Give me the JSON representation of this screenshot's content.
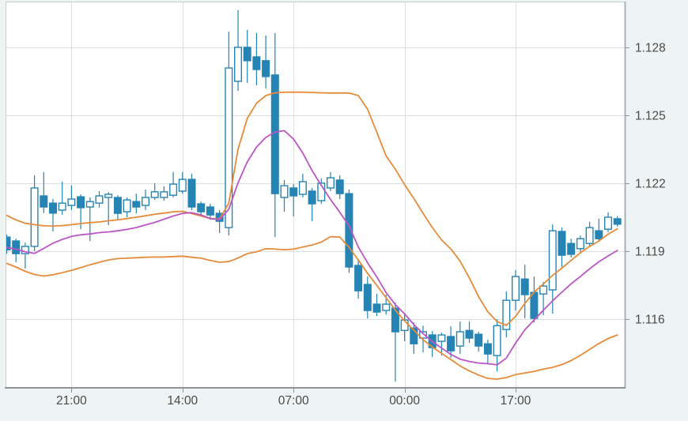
{
  "window": {
    "title": ""
  },
  "chart_data": {
    "type": "candlestick",
    "title": "",
    "xlabel": "",
    "ylabel": "",
    "grid": true,
    "legend": "none",
    "y_tick_labels": [
      "1.128",
      "1.125",
      "1.122",
      "1.119",
      "1.116"
    ],
    "y_ticks": [
      1.128,
      1.125,
      1.122,
      1.119,
      1.116
    ],
    "x_tick_labels": [
      "21:00",
      "14:00",
      "07:00",
      "00:00",
      "17:00"
    ],
    "x_tick_candle_index": [
      7,
      19,
      31,
      43,
      55
    ],
    "ylim": [
      1.113,
      1.13002
    ],
    "colors": {
      "candle": "#2584b4",
      "up_fill": "#ffffff",
      "band": "#e58b3a",
      "ma": "#bb55c6",
      "plot_bg": "#ffffff",
      "outer_bg": "#eef3f3",
      "grid": "#dcdfe2",
      "border_light": "#c9ced1",
      "border_right": "#a8b2b8",
      "axis_line": "#8f9296",
      "axis_text": "#4a4a4a"
    },
    "candles": [
      [
        1.11962,
        1.11973,
        1.11889,
        1.11906
      ],
      [
        1.11945,
        1.11955,
        1.11851,
        1.11889
      ],
      [
        1.11889,
        1.11938,
        1.11823,
        1.11921
      ],
      [
        1.11921,
        1.12235,
        1.119,
        1.12179
      ],
      [
        1.12144,
        1.12249,
        1.12068,
        1.12095
      ],
      [
        1.12112,
        1.1213,
        1.11987,
        1.12068
      ],
      [
        1.12081,
        1.12207,
        1.12061,
        1.12112
      ],
      [
        1.12102,
        1.1219,
        1.12081,
        1.1213
      ],
      [
        1.1214,
        1.12151,
        1.11997,
        1.12092
      ],
      [
        1.12095,
        1.12137,
        1.11945,
        1.12119
      ],
      [
        1.12112,
        1.12165,
        1.12092,
        1.12144
      ],
      [
        1.12137,
        1.12161,
        1.12015,
        1.12151
      ],
      [
        1.12137,
        1.12147,
        1.1204,
        1.12067
      ],
      [
        1.12074,
        1.12137,
        1.1205,
        1.12126
      ],
      [
        1.12119,
        1.12154,
        1.12067,
        1.12095
      ],
      [
        1.12102,
        1.12172,
        1.12081,
        1.12137
      ],
      [
        1.12137,
        1.122,
        1.12126,
        1.12162
      ],
      [
        1.12137,
        1.12186,
        1.12123,
        1.12162
      ],
      [
        1.12147,
        1.12249,
        1.12137,
        1.12196
      ],
      [
        1.12165,
        1.12249,
        1.12154,
        1.12217
      ],
      [
        1.12217,
        1.12242,
        1.12081,
        1.12095
      ],
      [
        1.12109,
        1.12119,
        1.12057,
        1.12074
      ],
      [
        1.12095,
        1.12109,
        1.12039,
        1.1206
      ],
      [
        1.12067,
        1.12081,
        1.1198,
        1.12032
      ],
      [
        1.12004,
        1.1287,
        1.11969,
        1.12709
      ],
      [
        1.1265,
        1.12964,
        1.12608,
        1.128
      ],
      [
        1.128,
        1.12877,
        1.12643,
        1.12741
      ],
      [
        1.12758,
        1.12863,
        1.12632,
        1.12702
      ],
      [
        1.12741,
        1.12852,
        1.12619,
        1.12671
      ],
      [
        1.12678,
        1.12863,
        1.11962,
        1.12154
      ],
      [
        1.12137,
        1.12214,
        1.12074,
        1.12189
      ],
      [
        1.12179,
        1.12196,
        1.12053,
        1.12144
      ],
      [
        1.12151,
        1.12242,
        1.12137,
        1.12207
      ],
      [
        1.12165,
        1.12179,
        1.12032,
        1.12109
      ],
      [
        1.12123,
        1.12221,
        1.12109,
        1.122
      ],
      [
        1.12179,
        1.12249,
        1.12165,
        1.12224
      ],
      [
        1.12214,
        1.12235,
        1.1213,
        1.12154
      ],
      [
        1.12154,
        1.12172,
        1.11805,
        1.1183
      ],
      [
        1.11837,
        1.11865,
        1.1169,
        1.11725
      ],
      [
        1.11753,
        1.11788,
        1.11603,
        1.11638
      ],
      [
        1.11666,
        1.11712,
        1.11613,
        1.11631
      ],
      [
        1.11638,
        1.11708,
        1.1162,
        1.11666
      ],
      [
        1.11648,
        1.11673,
        1.11324,
        1.11544
      ],
      [
        1.1155,
        1.11627,
        1.11502,
        1.11596
      ],
      [
        1.11561,
        1.11585,
        1.11446,
        1.11491
      ],
      [
        1.11516,
        1.11571,
        1.11453,
        1.11544
      ],
      [
        1.1153,
        1.11547,
        1.11432,
        1.11474
      ],
      [
        1.11502,
        1.1154,
        1.11439,
        1.1153
      ],
      [
        1.11523,
        1.11568,
        1.11429,
        1.1146
      ],
      [
        1.11481,
        1.11589,
        1.11446,
        1.11544
      ],
      [
        1.1155,
        1.11589,
        1.11495,
        1.11516
      ],
      [
        1.11533,
        1.11544,
        1.11456,
        1.11481
      ],
      [
        1.11491,
        1.11509,
        1.11404,
        1.11446
      ],
      [
        1.11439,
        1.11599,
        1.11369,
        1.11571
      ],
      [
        1.11554,
        1.11722,
        1.11519,
        1.11683
      ],
      [
        1.11683,
        1.11816,
        1.11638,
        1.11788
      ],
      [
        1.11777,
        1.1184,
        1.11603,
        1.11708
      ],
      [
        1.11718,
        1.11788,
        1.11585,
        1.11603
      ],
      [
        1.11711,
        1.11764,
        1.11617,
        1.11746
      ],
      [
        1.11729,
        1.12018,
        1.11624,
        1.1199
      ],
      [
        1.11987,
        1.12004,
        1.1183,
        1.11882
      ],
      [
        1.11934,
        1.11955,
        1.11872,
        1.11886
      ],
      [
        1.11911,
        1.11969,
        1.11897,
        1.11955
      ],
      [
        1.11934,
        1.12029,
        1.11921,
        1.12004
      ],
      [
        1.1199,
        1.12043,
        1.11941,
        1.11955
      ],
      [
        1.11997,
        1.12071,
        1.11983,
        1.1205
      ],
      [
        1.12043,
        1.12054,
        1.12008,
        1.12019
      ]
    ],
    "series": [
      {
        "name": "upper-band",
        "color": "#e58b3a",
        "values": [
          1.12058,
          1.12038,
          1.12023,
          1.12017,
          1.12012,
          1.12011,
          1.12013,
          1.12017,
          1.12022,
          1.12026,
          1.12029,
          1.12034,
          1.12038,
          1.12044,
          1.1205,
          1.12056,
          1.12063,
          1.12068,
          1.12074,
          1.12076,
          1.12066,
          1.12055,
          1.12044,
          1.12042,
          1.12112,
          1.1235,
          1.12486,
          1.12553,
          1.12587,
          1.12599,
          1.12602,
          1.12602,
          1.12602,
          1.12601,
          1.12599,
          1.12598,
          1.12598,
          1.12598,
          1.12587,
          1.12527,
          1.12425,
          1.12321,
          1.12262,
          1.12194,
          1.12133,
          1.12067,
          1.12004,
          1.11949,
          1.1191,
          1.11856,
          1.11782,
          1.11699,
          1.11632,
          1.11589,
          1.11572,
          1.11612,
          1.11669,
          1.11719,
          1.11755,
          1.11793,
          1.11825,
          1.11859,
          1.11893,
          1.11921,
          1.11945,
          1.11975,
          1.11999
        ]
      },
      {
        "name": "moving-average",
        "color": "#bb55c6",
        "values": [
          1.11916,
          1.11909,
          1.11897,
          1.1189,
          1.11912,
          1.11935,
          1.11952,
          1.11965,
          1.11972,
          1.11976,
          1.11982,
          1.11985,
          1.1199,
          1.11996,
          1.12004,
          1.12016,
          1.12027,
          1.12041,
          1.12055,
          1.12067,
          1.1207,
          1.1206,
          1.12044,
          1.12039,
          1.12085,
          1.12202,
          1.12294,
          1.1236,
          1.12402,
          1.12426,
          1.12432,
          1.12395,
          1.12333,
          1.12256,
          1.1219,
          1.12128,
          1.12072,
          1.12012,
          1.11918,
          1.11849,
          1.11786,
          1.11717,
          1.11664,
          1.11623,
          1.11576,
          1.11536,
          1.11501,
          1.11472,
          1.11444,
          1.11423,
          1.11413,
          1.11406,
          1.11403,
          1.11398,
          1.11428,
          1.11494,
          1.11553,
          1.11596,
          1.11639,
          1.11681,
          1.11719,
          1.11756,
          1.11788,
          1.11822,
          1.11853,
          1.11879,
          1.11903
        ]
      },
      {
        "name": "lower-band",
        "color": "#e58b3a",
        "values": [
          1.11846,
          1.1183,
          1.11811,
          1.11797,
          1.1179,
          1.11796,
          1.11805,
          1.11815,
          1.11827,
          1.1184,
          1.11851,
          1.11861,
          1.11867,
          1.11869,
          1.11871,
          1.11873,
          1.11874,
          1.11874,
          1.11876,
          1.11878,
          1.11873,
          1.11869,
          1.11859,
          1.11851,
          1.11854,
          1.1187,
          1.11889,
          1.11897,
          1.11911,
          1.11909,
          1.11906,
          1.11909,
          1.11918,
          1.11927,
          1.1194,
          1.11964,
          1.11962,
          1.11917,
          1.11861,
          1.11802,
          1.11749,
          1.11694,
          1.1164,
          1.11592,
          1.11551,
          1.11509,
          1.11476,
          1.11449,
          1.11421,
          1.11393,
          1.11371,
          1.11353,
          1.11338,
          1.11335,
          1.11342,
          1.11355,
          1.11362,
          1.11369,
          1.11379,
          1.11387,
          1.11399,
          1.11417,
          1.1144,
          1.11466,
          1.11492,
          1.11514,
          1.1153
        ]
      }
    ]
  }
}
